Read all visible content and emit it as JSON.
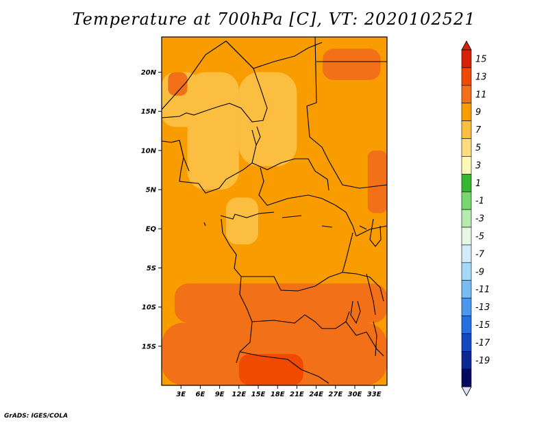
{
  "title": "Temperature at 700hPa [C], VT: 2020102521",
  "footer": "GrADS: IGES/COLA",
  "chart_data": {
    "type": "heatmap",
    "title": "Temperature at 700hPa [C], VT: 2020102521",
    "variable_units": "C",
    "valid_time": "2020102521",
    "xlim": [
      0,
      35
    ],
    "ylim": [
      -20,
      24.5
    ],
    "x_ticks": [
      {
        "v": 3,
        "label": "3E"
      },
      {
        "v": 6,
        "label": "6E"
      },
      {
        "v": 9,
        "label": "9E"
      },
      {
        "v": 12,
        "label": "12E"
      },
      {
        "v": 15,
        "label": "15E"
      },
      {
        "v": 18,
        "label": "18E"
      },
      {
        "v": 21,
        "label": "21E"
      },
      {
        "v": 24,
        "label": "24E"
      },
      {
        "v": 27,
        "label": "27E"
      },
      {
        "v": 30,
        "label": "30E"
      },
      {
        "v": 33,
        "label": "33E"
      }
    ],
    "y_ticks": [
      {
        "v": 20,
        "label": "20N"
      },
      {
        "v": 15,
        "label": "15N"
      },
      {
        "v": 10,
        "label": "10N"
      },
      {
        "v": 5,
        "label": "5N"
      },
      {
        "v": 0,
        "label": "EQ"
      },
      {
        "v": -5,
        "label": "5S"
      },
      {
        "v": -10,
        "label": "10S"
      },
      {
        "v": -15,
        "label": "15S"
      }
    ],
    "colorbar": {
      "levels": [
        "15",
        "13",
        "11",
        "9",
        "7",
        "5",
        "3",
        "1",
        "-1",
        "-3",
        "-5",
        "-7",
        "-9",
        "-11",
        "-13",
        "-15",
        "-17",
        "-19"
      ],
      "colors": [
        "#d82008",
        "#f04a00",
        "#f27018",
        "#f89c00",
        "#fbbe40",
        "#fddc80",
        "#fff7b5",
        "#38b830",
        "#78d870",
        "#b4ecb0",
        "#e6f8e4",
        "#d0ecfa",
        "#a6d8f8",
        "#78bcf4",
        "#4a98ee",
        "#2470e0",
        "#1448c0",
        "#0a2890",
        "#060a5c"
      ],
      "over_color": "#d82008",
      "under_color": "#e0e0fc"
    },
    "regions": [
      {
        "lon": [
          0,
          35
        ],
        "lat": [
          -20,
          24.5
        ],
        "value": 10
      },
      {
        "lon": [
          4,
          12
        ],
        "lat": [
          5,
          20
        ],
        "value": 8
      },
      {
        "lon": [
          12,
          21
        ],
        "lat": [
          8,
          20
        ],
        "value": 8
      },
      {
        "lon": [
          0,
          6
        ],
        "lat": [
          13,
          20
        ],
        "value": 8
      },
      {
        "lon": [
          10,
          15
        ],
        "lat": [
          -2,
          4
        ],
        "value": 8
      },
      {
        "lon": [
          2,
          35
        ],
        "lat": [
          -12,
          -7
        ],
        "value": 11
      },
      {
        "lon": [
          0,
          35
        ],
        "lat": [
          -20,
          -12
        ],
        "value": 11
      },
      {
        "lon": [
          8,
          24
        ],
        "lat": [
          -20,
          -14
        ],
        "value": 12
      },
      {
        "lon": [
          12,
          22
        ],
        "lat": [
          -20,
          -16
        ],
        "value": 13
      },
      {
        "lon": [
          25,
          34
        ],
        "lat": [
          19,
          23
        ],
        "value": 11
      },
      {
        "lon": [
          1,
          4
        ],
        "lat": [
          17,
          20
        ],
        "value": 12
      },
      {
        "lon": [
          32,
          35
        ],
        "lat": [
          2,
          10
        ],
        "value": 11
      }
    ]
  }
}
